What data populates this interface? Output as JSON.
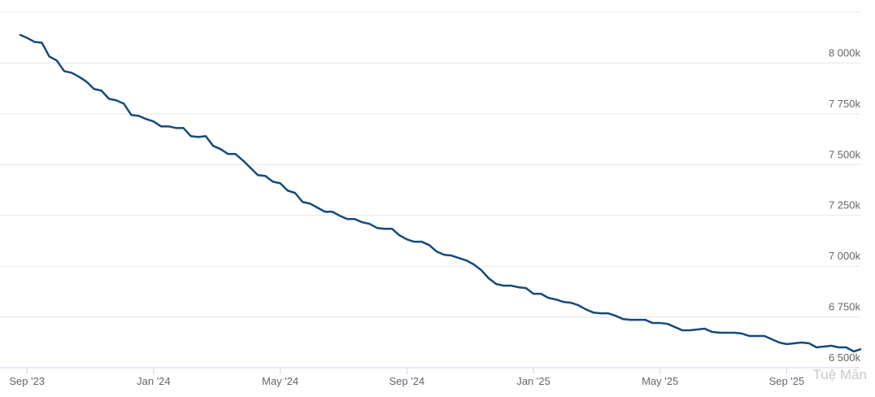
{
  "chart_data": {
    "type": "line",
    "categories": [
      null,
      "Sep '23",
      null,
      null,
      null,
      null,
      null,
      null,
      null,
      null,
      null,
      null,
      null,
      null,
      null,
      null,
      null,
      null,
      "Jan '24",
      null,
      null,
      null,
      null,
      null,
      null,
      null,
      null,
      null,
      null,
      null,
      null,
      null,
      null,
      null,
      null,
      "May '24",
      null,
      null,
      null,
      null,
      null,
      null,
      null,
      null,
      null,
      null,
      null,
      null,
      null,
      null,
      null,
      null,
      "Sep '24",
      null,
      null,
      null,
      null,
      null,
      null,
      null,
      null,
      null,
      null,
      null,
      null,
      null,
      null,
      null,
      null,
      "Jan '25",
      null,
      null,
      null,
      null,
      null,
      null,
      null,
      null,
      null,
      null,
      null,
      null,
      null,
      null,
      null,
      null,
      "May '25",
      null,
      null,
      null,
      null,
      null,
      null,
      null,
      null,
      null,
      null,
      null,
      null,
      null,
      null,
      null,
      null,
      "Sep '25",
      null,
      null,
      null,
      null,
      null,
      null,
      null,
      null,
      null,
      null
    ],
    "series": [
      {
        "color": "#154a7d",
        "values": [
          8140,
          8124,
          8104,
          8100,
          8032,
          8012,
          7960,
          7952,
          7932,
          7908,
          7872,
          7864,
          7824,
          7816,
          7800,
          7744,
          7740,
          7724,
          7712,
          7688,
          7688,
          7680,
          7680,
          7640,
          7636,
          7640,
          7592,
          7576,
          7552,
          7552,
          7520,
          7484,
          7448,
          7444,
          7416,
          7408,
          7372,
          7360,
          7316,
          7308,
          7288,
          7268,
          7268,
          7248,
          7232,
          7232,
          7216,
          7208,
          7188,
          7184,
          7184,
          7152,
          7132,
          7120,
          7120,
          7104,
          7072,
          7056,
          7052,
          7040,
          7028,
          7008,
          6980,
          6940,
          6912,
          6904,
          6904,
          6896,
          6892,
          6864,
          6864,
          6844,
          6836,
          6824,
          6820,
          6808,
          6788,
          6772,
          6768,
          6768,
          6756,
          6740,
          6736,
          6736,
          6736,
          6720,
          6720,
          6716,
          6700,
          6684,
          6684,
          6688,
          6692,
          6676,
          6672,
          6672,
          6672,
          6668,
          6656,
          6656,
          6656,
          6640,
          6624,
          6616,
          6620,
          6624,
          6620,
          6600,
          6604,
          6608,
          6600,
          6600,
          6580,
          6592
        ]
      }
    ],
    "ylim": [
      6500,
      8250
    ],
    "yticks": [
      {
        "value": 6500,
        "label": "6 500k"
      },
      {
        "value": 6750,
        "label": "6 750k"
      },
      {
        "value": 7000,
        "label": "7 000k"
      },
      {
        "value": 7250,
        "label": "7 250k"
      },
      {
        "value": 7500,
        "label": "7 500k"
      },
      {
        "value": 7750,
        "label": "7 750k"
      },
      {
        "value": 8000,
        "label": "8 000k"
      }
    ],
    "grid": true,
    "watermark": "Tuệ Mẫn"
  }
}
